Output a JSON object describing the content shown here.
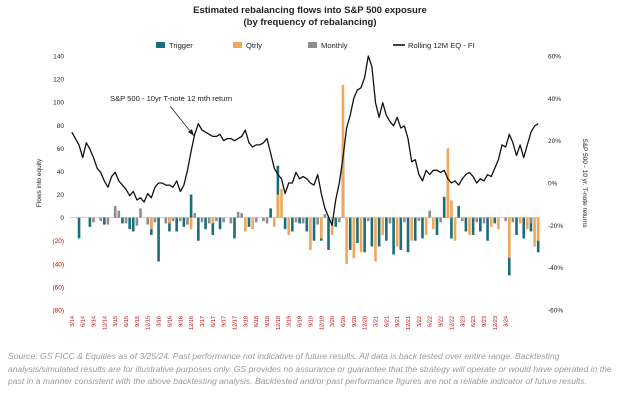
{
  "chart_data": {
    "type": "bar",
    "title": "Estimated rebalancing flows into S&P 500 exposure",
    "subtitle": "(by frequency of rebalancing)",
    "ylabel_left": "Flows into equity",
    "ylabel_right": "S&P 500 - 10 yr. T-note returns",
    "ylim_left": [
      -80,
      140
    ],
    "ylim_right": [
      -60,
      60
    ],
    "left_ticks": [
      "140",
      "120",
      "100",
      "80",
      "60",
      "40",
      "20",
      "0",
      "(20)",
      "(40)",
      "(60)",
      "(80)"
    ],
    "right_ticks": [
      "60%",
      "40%",
      "20%",
      "0%",
      "-20%",
      "-40%",
      "-60%"
    ],
    "x_tick_labels": [
      "3/14",
      "6/14",
      "9/14",
      "12/14",
      "3/15",
      "6/15",
      "9/15",
      "12/15",
      "3/16",
      "6/16",
      "9/16",
      "12/16",
      "3/17",
      "6/17",
      "9/17",
      "12/17",
      "3/18",
      "6/18",
      "9/18",
      "12/18",
      "3/19",
      "6/19",
      "9/19",
      "12/19",
      "3/20",
      "6/20",
      "9/20",
      "12/20",
      "3/21",
      "6/21",
      "9/21",
      "12/21",
      "3/22",
      "6/22",
      "9/22",
      "12/22",
      "3/23",
      "6/23",
      "9/23",
      "12/23",
      "3/24"
    ],
    "legend": [
      "Trigger",
      "Qtrly",
      "Monthly",
      "Rolling 12M EQ - FI"
    ],
    "annotation": "S&P 500 - 10yr T-note 12 mth return",
    "colors": {
      "trigger": "#1a6e7a",
      "qtrly": "#f2a65a",
      "monthly": "#8c8c8c",
      "line": "#111111",
      "neg_tick": "#c00000"
    },
    "series": [
      {
        "name": "Trigger",
        "points": [
          [
            2,
            -18
          ],
          [
            5,
            -8
          ],
          [
            9,
            -6
          ],
          [
            14,
            -5
          ],
          [
            16,
            -10
          ],
          [
            17,
            -12
          ],
          [
            22,
            -15
          ],
          [
            24,
            -38
          ],
          [
            27,
            -12
          ],
          [
            29,
            -12
          ],
          [
            31,
            -8
          ],
          [
            33,
            20
          ],
          [
            35,
            -20
          ],
          [
            37,
            -10
          ],
          [
            39,
            -15
          ],
          [
            41,
            -10
          ],
          [
            45,
            -18
          ],
          [
            49,
            -8
          ],
          [
            55,
            8
          ],
          [
            57,
            45
          ],
          [
            59,
            -10
          ],
          [
            61,
            -12
          ],
          [
            63,
            -5
          ],
          [
            65,
            -12
          ],
          [
            67,
            -20
          ],
          [
            69,
            -20
          ],
          [
            71,
            -28
          ],
          [
            73,
            -8
          ],
          [
            75,
            60
          ],
          [
            77,
            -28
          ],
          [
            79,
            -22
          ],
          [
            81,
            -30
          ],
          [
            83,
            -25
          ],
          [
            85,
            -25
          ],
          [
            87,
            -20
          ],
          [
            89,
            -32
          ],
          [
            91,
            -28
          ],
          [
            93,
            -30
          ],
          [
            95,
            -20
          ],
          [
            97,
            -18
          ],
          [
            101,
            -15
          ],
          [
            103,
            18
          ],
          [
            104,
            40
          ],
          [
            105,
            -18
          ],
          [
            107,
            10
          ],
          [
            109,
            -12
          ],
          [
            111,
            -15
          ],
          [
            113,
            -12
          ],
          [
            115,
            -20
          ],
          [
            117,
            -5
          ],
          [
            121,
            -50
          ],
          [
            123,
            -15
          ],
          [
            125,
            -18
          ],
          [
            127,
            -12
          ],
          [
            129,
            -30
          ]
        ]
      },
      {
        "name": "Qtrly",
        "points": [
          [
            22,
            -10
          ],
          [
            27,
            -5
          ],
          [
            33,
            -10
          ],
          [
            39,
            -5
          ],
          [
            48,
            -12
          ],
          [
            50,
            -10
          ],
          [
            56,
            -8
          ],
          [
            57,
            20
          ],
          [
            58,
            25
          ],
          [
            60,
            -15
          ],
          [
            66,
            -28
          ],
          [
            69,
            -18
          ],
          [
            72,
            -15
          ],
          [
            75,
            115
          ],
          [
            76,
            -40
          ],
          [
            78,
            -35
          ],
          [
            80,
            -30
          ],
          [
            84,
            -38
          ],
          [
            86,
            -15
          ],
          [
            90,
            -25
          ],
          [
            94,
            -20
          ],
          [
            98,
            -15
          ],
          [
            100,
            -10
          ],
          [
            104,
            60
          ],
          [
            105,
            15
          ],
          [
            106,
            -20
          ],
          [
            110,
            -15
          ],
          [
            116,
            -8
          ],
          [
            118,
            -10
          ],
          [
            121,
            -35
          ],
          [
            124,
            -5
          ],
          [
            126,
            -10
          ],
          [
            128,
            -25
          ],
          [
            129,
            -20
          ]
        ]
      },
      {
        "name": "Monthly",
        "points": [
          [
            6,
            -4
          ],
          [
            8,
            -3
          ],
          [
            10,
            -6
          ],
          [
            12,
            10
          ],
          [
            13,
            6
          ],
          [
            15,
            -5
          ],
          [
            18,
            -7
          ],
          [
            19,
            8
          ],
          [
            21,
            -6
          ],
          [
            23,
            -4
          ],
          [
            26,
            -5
          ],
          [
            28,
            -3
          ],
          [
            30,
            -3
          ],
          [
            32,
            -6
          ],
          [
            34,
            4
          ],
          [
            36,
            -4
          ],
          [
            38,
            -5
          ],
          [
            40,
            -3
          ],
          [
            42,
            -4
          ],
          [
            44,
            -5
          ],
          [
            46,
            5
          ],
          [
            47,
            4
          ],
          [
            51,
            -4
          ],
          [
            53,
            -3
          ],
          [
            54,
            -5
          ],
          [
            62,
            -4
          ],
          [
            64,
            -5
          ],
          [
            68,
            -6
          ],
          [
            70,
            3
          ],
          [
            74,
            -4
          ],
          [
            82,
            -3
          ],
          [
            88,
            -5
          ],
          [
            92,
            -4
          ],
          [
            96,
            -3
          ],
          [
            99,
            6
          ],
          [
            102,
            -4
          ],
          [
            108,
            -3
          ],
          [
            112,
            -4
          ],
          [
            114,
            -5
          ],
          [
            120,
            -3
          ],
          [
            122,
            -4
          ],
          [
            127,
            -5
          ]
        ]
      },
      {
        "name": "Rolling 12M EQ - FI",
        "axis": "right",
        "values": [
          24,
          21,
          18,
          12,
          19,
          16,
          12,
          7,
          5,
          1,
          -2,
          3,
          5,
          1,
          -1,
          -3,
          -6,
          -4,
          -8,
          -7,
          -9,
          -5,
          -7,
          -2,
          0,
          0,
          -1,
          -1,
          -2,
          1,
          -4,
          -1,
          6,
          15,
          23,
          28,
          25,
          24,
          23,
          22,
          22,
          23,
          20,
          21,
          21,
          20,
          21,
          22,
          25,
          19,
          17,
          18,
          18,
          19,
          21,
          14,
          7,
          4,
          2,
          -5,
          0,
          0,
          5,
          2,
          3,
          2,
          0,
          -1,
          4,
          -5,
          -12,
          -16,
          -20,
          -8,
          0,
          12,
          26,
          32,
          40,
          44,
          45,
          50,
          60,
          55,
          38,
          31,
          38,
          32,
          29,
          27,
          31,
          26,
          27,
          21,
          10,
          11,
          4,
          1,
          6,
          4,
          6,
          6,
          5,
          6,
          2,
          0,
          1,
          -1,
          2,
          4,
          5,
          3,
          0,
          2,
          1,
          4,
          3,
          7,
          11,
          18,
          17,
          23,
          19,
          13,
          18,
          12,
          18,
          24,
          27,
          28
        ]
      }
    ]
  },
  "source_note": "Source: GS FICC & Equities as of 3/25/24. Past performance not indicative of future results. All data is back tested over entire range. Backtesting analysis/simulated results are for illustrative purposes only. GS provides no assurance or guarantee that the strategy will operate or would have operated in the past in a manner consistent with the above backtesting analysis. Backtested and/or past performance figures are not a reliable indicator of future results."
}
